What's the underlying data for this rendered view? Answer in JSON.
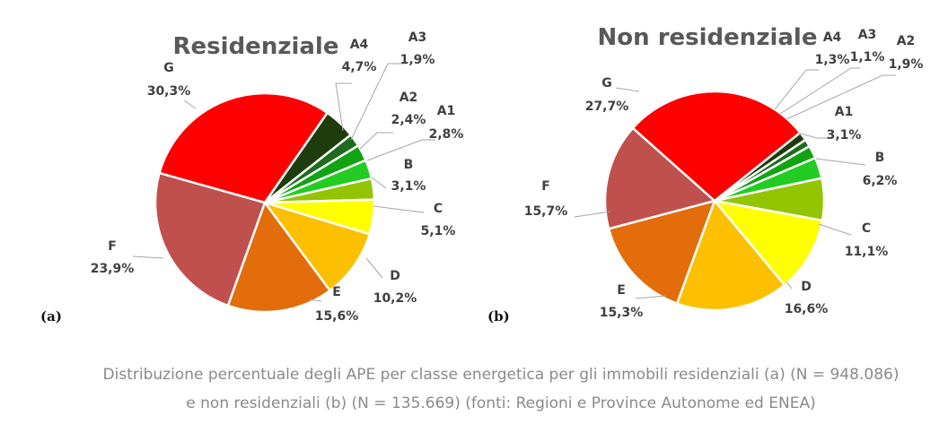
{
  "chart_data": [
    {
      "type": "pie",
      "title": "Residenziale",
      "panel": "(a)",
      "categories": [
        "A4",
        "A3",
        "A2",
        "A1",
        "B",
        "C",
        "D",
        "E",
        "F",
        "G"
      ],
      "values": [
        4.7,
        1.9,
        2.4,
        2.8,
        3.1,
        5.1,
        10.2,
        15.6,
        23.9,
        30.3
      ],
      "value_labels": [
        "4,7%",
        "1,9%",
        "2,4%",
        "2,8%",
        "3,1%",
        "5,1%",
        "10,2%",
        "15,6%",
        "23,9%",
        "30,3%"
      ],
      "colors": [
        "#1f3d0c",
        "#1e6b1e",
        "#12a312",
        "#22cc22",
        "#92c500",
        "#ffff00",
        "#fcc000",
        "#e26d0a",
        "#c0504d",
        "#ff0000"
      ]
    },
    {
      "type": "pie",
      "title": "Non residenziale",
      "panel": "(b)",
      "categories": [
        "A4",
        "A3",
        "A2",
        "A1",
        "B",
        "C",
        "D",
        "E",
        "F",
        "G"
      ],
      "values": [
        1.3,
        1.1,
        1.9,
        3.1,
        6.2,
        11.1,
        16.6,
        15.3,
        15.7,
        27.7
      ],
      "value_labels": [
        "1,3%",
        "1,1%",
        "1,9%",
        "3,1%",
        "6,2%",
        "11,1%",
        "16,6%",
        "15,3%",
        "15,7%",
        "27,7%"
      ],
      "colors": [
        "#1f3d0c",
        "#1e6b1e",
        "#12a312",
        "#22cc22",
        "#92c500",
        "#ffff00",
        "#fcc000",
        "#e26d0a",
        "#c0504d",
        "#ff0000"
      ]
    }
  ],
  "caption": {
    "line1": "Distribuzione percentuale degli APE per classe energetica per gli immobili residenziali (a) (N = 948.086)",
    "line2": "e non residenziali (b) (N = 135.669) (fonti: Regioni e Province Autonome ed ENEA)"
  }
}
